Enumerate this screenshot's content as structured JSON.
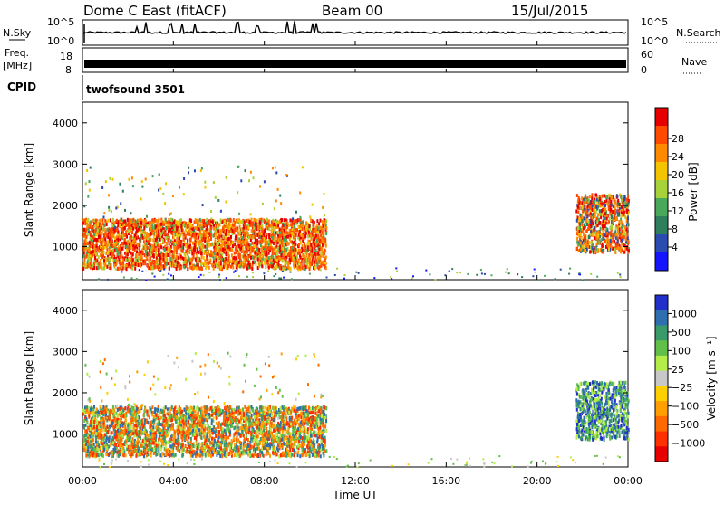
{
  "header": {
    "title": "Dome C East (fitACF)",
    "beam": "Beam 00",
    "date": "15/Jul/2015"
  },
  "strip_labels": {
    "nsky": "N.Sky",
    "nsearch": "N.Search",
    "freq_line1": "Freq.",
    "freq_line2": "[MHz]",
    "nave": "Nave",
    "cpid": "CPID",
    "nsky_top": "10^5",
    "nsky_bottom": "10^0",
    "freq_top": "18",
    "freq_bottom": "8",
    "nave_top": "60",
    "nave_bottom": "0",
    "cpid_value": "twofsound 3501"
  },
  "chart_data": [
    {
      "type": "heatmap",
      "name": "Power",
      "ylabel": "Slant Range [km]",
      "ylim": [
        200,
        4500
      ],
      "yticks": [
        1000,
        2000,
        3000,
        4000
      ],
      "xlabel": "Time UT",
      "xlim": [
        0,
        24
      ],
      "xticks": [
        "00:00",
        "04:00",
        "08:00",
        "12:00",
        "16:00",
        "20:00",
        "00:00"
      ],
      "colorbar_label": "Power [dB]",
      "colorbar_ticks": [
        "4",
        "8",
        "12",
        "16",
        "20",
        "24",
        "28"
      ],
      "colorbar_colors": [
        "#1414ff",
        "#2a4bb0",
        "#2f7e5e",
        "#4aa85a",
        "#a8d23a",
        "#f5c400",
        "#ff8a00",
        "#ff4a00",
        "#e60000"
      ],
      "scatter_regions": [
        {
          "t_start": 0.0,
          "t_end": 10.7,
          "range_min": 500,
          "range_max": 1700,
          "level": "high"
        },
        {
          "t_start": 0.0,
          "t_end": 10.7,
          "range_min": 1400,
          "range_max": 3000,
          "level": "sparse"
        },
        {
          "t_start": 21.7,
          "t_end": 24.0,
          "range_min": 900,
          "range_max": 2300,
          "level": "high"
        },
        {
          "t_start": 0.0,
          "t_end": 24.0,
          "range_min": 200,
          "range_max": 500,
          "level": "noise"
        }
      ]
    },
    {
      "type": "heatmap",
      "name": "Velocity",
      "ylabel": "Slant Range [km]",
      "ylim": [
        200,
        4500
      ],
      "yticks": [
        1000,
        2000,
        3000,
        4000
      ],
      "xlabel": "Time UT",
      "xlim": [
        0,
        24
      ],
      "xticks": [
        "00:00",
        "04:00",
        "08:00",
        "12:00",
        "16:00",
        "20:00",
        "00:00"
      ],
      "colorbar_label": "Velocity [m s⁻¹]",
      "colorbar_ticks": [
        "1000",
        "500",
        "100",
        "25",
        "−25",
        "−100",
        "−500",
        "−1000"
      ],
      "colorbar_colors": [
        "#2030c8",
        "#2f6fb0",
        "#3a9a6a",
        "#62c04a",
        "#b4ec4a",
        "#c8c8c8",
        "#ffd000",
        "#ffa000",
        "#ff6a00",
        "#ff3000",
        "#e80000"
      ],
      "scatter_regions": [
        {
          "t_start": 0.0,
          "t_end": 10.7,
          "range_min": 500,
          "range_max": 1700,
          "level": "mixed"
        },
        {
          "t_start": 0.0,
          "t_end": 10.7,
          "range_min": 1400,
          "range_max": 3000,
          "level": "sparse"
        },
        {
          "t_start": 21.7,
          "t_end": 24.0,
          "range_min": 900,
          "range_max": 2300,
          "level": "blue-green"
        },
        {
          "t_start": 0.0,
          "t_end": 24.0,
          "range_min": 200,
          "range_max": 500,
          "level": "ground"
        }
      ]
    }
  ]
}
